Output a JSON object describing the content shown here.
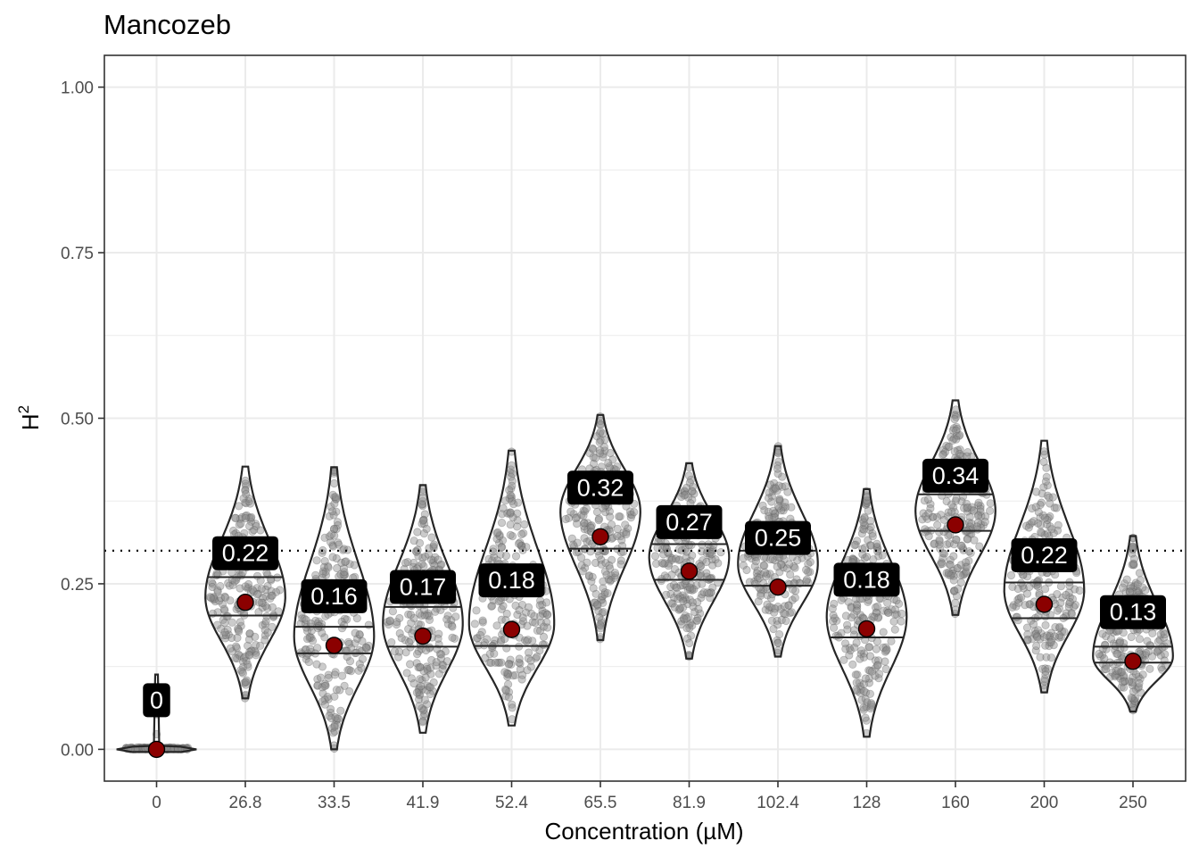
{
  "chart_data": {
    "type": "violin",
    "title": "Mancozeb",
    "xlabel": "Concentration (µM)",
    "ylabel": "H",
    "ylabel_superscript": "2",
    "ylim": [
      -0.048,
      1.048
    ],
    "yticks": [
      0.0,
      0.25,
      0.5,
      0.75,
      1.0
    ],
    "ytick_labels": [
      "0.00",
      "0.25",
      "0.50",
      "0.75",
      "1.00"
    ],
    "reference_line": 0.3,
    "categories": [
      "0",
      "26.8",
      "33.5",
      "41.9",
      "52.4",
      "65.5",
      "81.9",
      "102.4",
      "128",
      "160",
      "200",
      "250"
    ],
    "mean_labels": [
      "0",
      "0.22",
      "0.16",
      "0.17",
      "0.18",
      "0.32",
      "0.27",
      "0.25",
      "0.18",
      "0.34",
      "0.22",
      "0.13"
    ],
    "means": [
      0.0,
      0.222,
      0.157,
      0.171,
      0.181,
      0.321,
      0.269,
      0.245,
      0.182,
      0.339,
      0.219,
      0.133
    ],
    "distributions": [
      {
        "min": 0.0,
        "max": 0.113,
        "q25": 0.0,
        "q50": 0.0,
        "q75": 0.0,
        "mode": 0.0,
        "halfwidth": 0.45
      },
      {
        "min": 0.077,
        "max": 0.427,
        "q25": 0.202,
        "q50": 0.23,
        "q75": 0.26,
        "mode": 0.23,
        "halfwidth": 0.45
      },
      {
        "min": 0.0,
        "max": 0.426,
        "q25": 0.145,
        "q50": 0.162,
        "q75": 0.185,
        "mode": 0.17,
        "halfwidth": 0.45
      },
      {
        "min": 0.025,
        "max": 0.399,
        "q25": 0.155,
        "q50": 0.18,
        "q75": 0.215,
        "mode": 0.19,
        "halfwidth": 0.45
      },
      {
        "min": 0.036,
        "max": 0.451,
        "q25": 0.156,
        "q50": 0.18,
        "q75": 0.27,
        "mode": 0.19,
        "halfwidth": 0.48
      },
      {
        "min": 0.165,
        "max": 0.505,
        "q25": 0.303,
        "q50": 0.33,
        "q75": 0.405,
        "mode": 0.36,
        "halfwidth": 0.45
      },
      {
        "min": 0.137,
        "max": 0.432,
        "q25": 0.256,
        "q50": 0.275,
        "q75": 0.31,
        "mode": 0.29,
        "halfwidth": 0.45
      },
      {
        "min": 0.14,
        "max": 0.458,
        "q25": 0.247,
        "q50": 0.265,
        "q75": 0.3,
        "mode": 0.28,
        "halfwidth": 0.45
      },
      {
        "min": 0.019,
        "max": 0.393,
        "q25": 0.169,
        "q50": 0.19,
        "q75": 0.268,
        "mode": 0.2,
        "halfwidth": 0.45
      },
      {
        "min": 0.203,
        "max": 0.527,
        "q25": 0.33,
        "q50": 0.355,
        "q75": 0.385,
        "mode": 0.36,
        "halfwidth": 0.45
      },
      {
        "min": 0.086,
        "max": 0.466,
        "q25": 0.198,
        "q50": 0.23,
        "q75": 0.252,
        "mode": 0.24,
        "halfwidth": 0.45
      },
      {
        "min": 0.057,
        "max": 0.322,
        "q25": 0.131,
        "q50": 0.14,
        "q75": 0.155,
        "mode": 0.14,
        "halfwidth": 0.45
      }
    ],
    "colors": {
      "violin_outline": "#262626",
      "points": "#8c8c8c",
      "mean_point": "#8b0000",
      "label_bg": "#000000",
      "label_text": "#ffffff",
      "grid_major": "#ebebeb",
      "panel_border": "#333333"
    }
  }
}
